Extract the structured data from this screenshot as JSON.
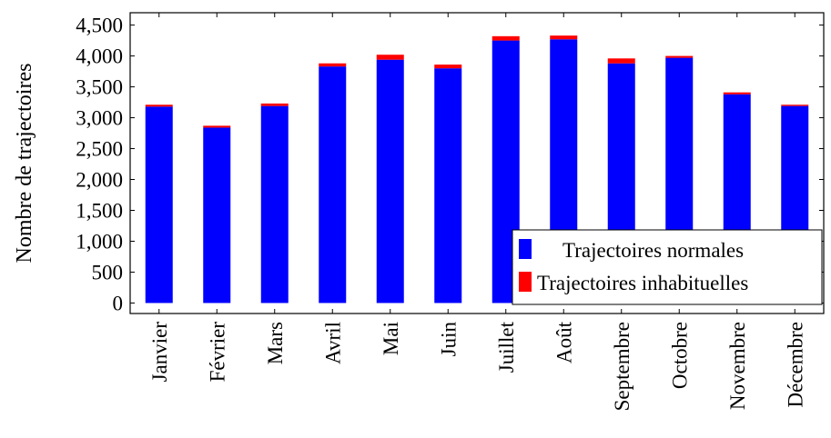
{
  "chart_data": {
    "type": "bar",
    "stacked": true,
    "categories": [
      "Janvier",
      "Février",
      "Mars",
      "Avril",
      "Mai",
      "Juin",
      "Juillet",
      "Août",
      "Septembre",
      "Octobre",
      "Novembre",
      "Décembre"
    ],
    "series": [
      {
        "name": "Trajectoires normales",
        "color": "#0000ff",
        "values": [
          3180,
          2840,
          3190,
          3830,
          3940,
          3800,
          4250,
          4270,
          3880,
          3970,
          3380,
          3190
        ]
      },
      {
        "name": "Trajectoires inhabituelles",
        "color": "#ff0000",
        "values": [
          30,
          30,
          40,
          50,
          80,
          60,
          70,
          60,
          80,
          30,
          30,
          20
        ]
      }
    ],
    "ylabel": "Nombre de trajectoires",
    "xlabel": "",
    "ylim": [
      -170,
      4700
    ],
    "yticks": [
      0,
      500,
      1000,
      1500,
      2000,
      2500,
      3000,
      3500,
      4000,
      4500
    ],
    "ytick_labels": [
      "0",
      "500",
      "1,000",
      "1,500",
      "2,000",
      "2,500",
      "3,000",
      "3,500",
      "4,000",
      "4,500"
    ],
    "legend_position": "bottom-right",
    "grid": false
  }
}
